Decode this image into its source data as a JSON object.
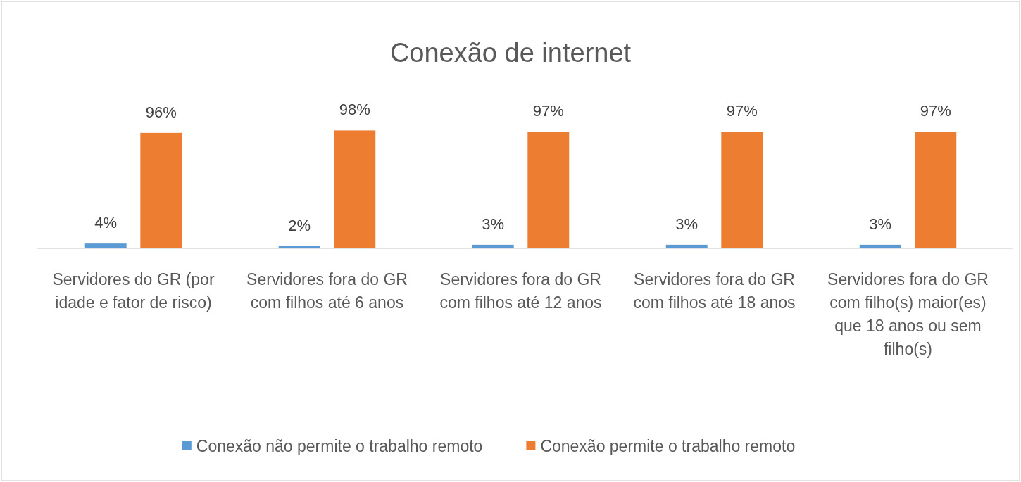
{
  "chart_data": {
    "type": "bar",
    "title": "Conexão de internet",
    "categories": [
      "Servidores do GR (por idade e fator de risco)",
      "Servidores fora do GR com filhos até 6 anos",
      "Servidores fora do GR com filhos até 12 anos",
      "Servidores fora do GR com filhos até 18 anos",
      "Servidores fora do GR com filho(s) maior(es) que 18 anos ou sem filho(s)"
    ],
    "series": [
      {
        "name": "Conexão não permite o trabalho remoto",
        "color": "#5b9bd5",
        "values": [
          4,
          2,
          3,
          3,
          3
        ],
        "value_labels": [
          "4%",
          "2%",
          "3%",
          "3%",
          "3%"
        ]
      },
      {
        "name": "Conexão permite o trabalho remoto",
        "color": "#ed7d31",
        "values": [
          96,
          98,
          97,
          97,
          97
        ],
        "value_labels": [
          "96%",
          "98%",
          "97%",
          "97%",
          "97%"
        ]
      }
    ],
    "ylim": [
      0,
      100
    ],
    "tick_labels": "x",
    "legend": "bottom"
  }
}
